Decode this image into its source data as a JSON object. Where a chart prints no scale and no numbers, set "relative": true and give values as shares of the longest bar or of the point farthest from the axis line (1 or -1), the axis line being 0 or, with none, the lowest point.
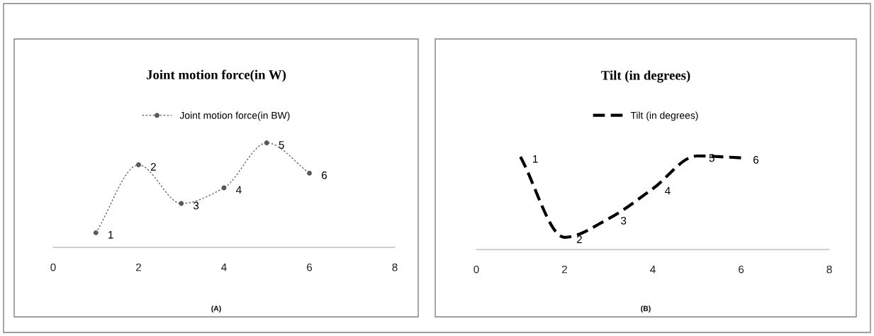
{
  "chart_data": [
    {
      "type": "line",
      "title": "Joint motion force(in W)",
      "relative": true,
      "xlim": [
        0,
        8
      ],
      "xticks": [
        0,
        2,
        4,
        6,
        8
      ],
      "grid": false,
      "legend": "top",
      "marker": "circle",
      "line_style": "dotted",
      "series": [
        {
          "name": "Joint motion force(in BW)",
          "color": "#595959",
          "x": [
            1,
            2,
            3,
            4,
            5,
            6
          ],
          "values": [
            0.14,
            0.79,
            0.42,
            0.57,
            1,
            0.71
          ]
        }
      ],
      "annotations": [
        {
          "text": "1",
          "x": 1,
          "y": 0.14
        },
        {
          "text": "2",
          "x": 2,
          "y": 0.79
        },
        {
          "text": "3",
          "x": 3,
          "y": 0.42
        },
        {
          "text": "4",
          "x": 4,
          "y": 0.57
        },
        {
          "text": "5",
          "x": 5,
          "y": 1
        },
        {
          "text": "6",
          "x": 6,
          "y": 0.71
        },
        "(A)"
      ]
    },
    {
      "type": "line",
      "title": "Tilt (in degrees)",
      "relative": true,
      "xlim": [
        0,
        8
      ],
      "xticks": [
        0,
        2,
        4,
        6,
        8
      ],
      "grid": false,
      "legend": "top",
      "marker": "none",
      "line_style": "dashed",
      "series": [
        {
          "name": "Tilt (in degrees)",
          "color": "#000000",
          "x": [
            1,
            2,
            3,
            4,
            5,
            6
          ],
          "values": [
            0.99,
            0.13,
            0.33,
            0.65,
            1,
            0.98
          ]
        }
      ],
      "annotations": [
        {
          "text": "1",
          "x": 1,
          "y": 0.99
        },
        {
          "text": "2",
          "x": 2,
          "y": 0.13
        },
        {
          "text": "3",
          "x": 3,
          "y": 0.33
        },
        {
          "text": "4",
          "x": 4,
          "y": 0.65
        },
        {
          "text": "5",
          "x": 5,
          "y": 1
        },
        {
          "text": "6",
          "x": 6,
          "y": 0.98
        },
        "(B)"
      ]
    }
  ]
}
